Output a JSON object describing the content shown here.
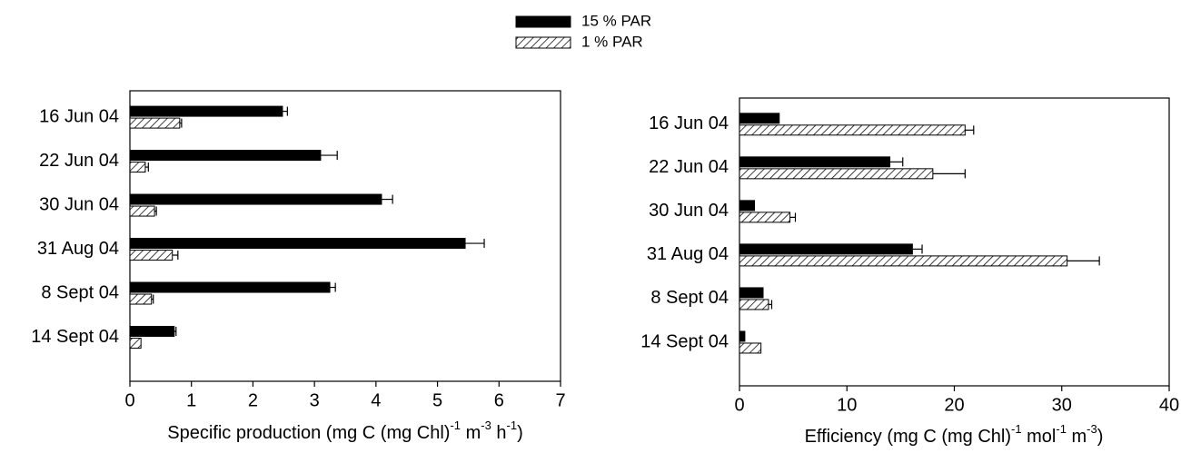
{
  "chart_data": [
    {
      "type": "bar",
      "orientation": "horizontal",
      "categories": [
        "16 Jun 04",
        "22 Jun 04",
        "30 Jun 04",
        "31 Aug 04",
        "8 Sept 04",
        "14 Sept 04"
      ],
      "series": [
        {
          "name": "15 % PAR",
          "color": "#000000",
          "pattern": "solid",
          "values": [
            2.48,
            3.1,
            4.09,
            5.45,
            3.25,
            0.72
          ],
          "errors": [
            0.08,
            0.27,
            0.18,
            0.31,
            0.09,
            0.03
          ]
        },
        {
          "name": "1 % PAR",
          "color": "#000000",
          "pattern": "hatch",
          "values": [
            0.81,
            0.25,
            0.4,
            0.69,
            0.35,
            0.18
          ],
          "errors": [
            0.03,
            0.05,
            0.03,
            0.09,
            0.03,
            null
          ]
        }
      ],
      "xlim": [
        0,
        7
      ],
      "xticks": [
        0,
        1,
        2,
        3,
        4,
        5,
        6,
        7
      ],
      "xlabel": [
        "Specific production (mg C (mg Chl)",
        "-1",
        " m",
        "-3",
        " h",
        "-1",
        ")"
      ]
    },
    {
      "type": "bar",
      "orientation": "horizontal",
      "categories": [
        "16 Jun 04",
        "22 Jun 04",
        "30 Jun 04",
        "31 Aug 04",
        "8 Sept 04",
        "14 Sept 04"
      ],
      "series": [
        {
          "name": "15 % PAR",
          "color": "#000000",
          "pattern": "solid",
          "values": [
            3.7,
            14.0,
            1.4,
            16.1,
            2.2,
            0.5
          ],
          "errors": [
            null,
            1.2,
            null,
            0.9,
            null,
            null
          ]
        },
        {
          "name": "1 % PAR",
          "color": "#000000",
          "pattern": "hatch",
          "values": [
            21.0,
            18.0,
            4.7,
            30.5,
            2.7,
            2.0
          ],
          "errors": [
            0.8,
            3.0,
            0.5,
            3.0,
            0.3,
            null
          ]
        }
      ],
      "xlim": [
        0,
        40
      ],
      "xticks": [
        0,
        10,
        20,
        30,
        40
      ],
      "xlabel": [
        "Efficiency (mg C (mg Chl)",
        "-1",
        " mol",
        "-1",
        " m",
        "-3",
        ")"
      ]
    }
  ]
}
